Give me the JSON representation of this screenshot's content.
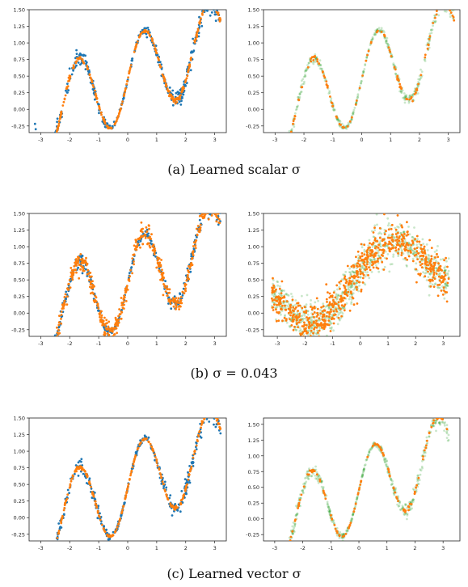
{
  "captions": [
    "(a) Learned scalar σ",
    "(b) σ = 0.043",
    "(c) Learned vector σ"
  ],
  "colors": {
    "blue": "#1f77b4",
    "orange": "#ff7f0e",
    "green": "#2ca02c"
  },
  "chart_data": [
    {
      "type": "scatter",
      "xlim": [
        -3.4,
        3.4
      ],
      "ylim": [
        -0.35,
        1.5
      ],
      "xticks": [
        "-3",
        "-2",
        "-1",
        "0",
        "1",
        "2",
        "3"
      ],
      "yticks": [
        "-0.25",
        "0.00",
        "0.25",
        "0.50",
        "0.75",
        "1.00",
        "1.25",
        "1.50"
      ],
      "ytick_values": [
        -0.25,
        0,
        0.25,
        0.5,
        0.75,
        1.0,
        1.25,
        1.5
      ],
      "series": [
        {
          "color": "blue",
          "noise": [
            0.06,
            0.01,
            0.08
          ],
          "count": 420
        },
        {
          "color": "orange",
          "noise": [
            0.02,
            0.0,
            0.02
          ],
          "count": 380
        }
      ],
      "function": "y = (sin(2.8x) + 0.3x + 0.4)/1.6 + 0.2"
    },
    {
      "type": "scatter",
      "xlim": [
        -3.4,
        3.4
      ],
      "ylim": [
        -0.35,
        1.5
      ],
      "xticks": [
        "-3",
        "-2",
        "-1",
        "0",
        "1",
        "2",
        "3"
      ],
      "yticks": [
        "-0.25",
        "0.00",
        "0.25",
        "0.50",
        "0.75",
        "1.00",
        "1.25",
        "1.50"
      ],
      "ytick_values": [
        -0.25,
        0,
        0.25,
        0.5,
        0.75,
        1.0,
        1.25,
        1.5
      ],
      "series": [
        {
          "color": "green",
          "noise": [
            0.04,
            0.01,
            0.06
          ],
          "count": 500,
          "alpha": 0.25
        },
        {
          "color": "orange",
          "noise": [
            0.02,
            0.0,
            0.02
          ],
          "count": 130
        }
      ]
    },
    {
      "type": "scatter",
      "xlim": [
        -3.4,
        3.4
      ],
      "ylim": [
        -0.35,
        1.5
      ],
      "xticks": [
        "-3",
        "-2",
        "-1",
        "0",
        "1",
        "2",
        "3"
      ],
      "yticks": [
        "-0.25",
        "0.00",
        "0.25",
        "0.50",
        "0.75",
        "1.00",
        "1.25",
        "1.50"
      ],
      "ytick_values": [
        -0.25,
        0,
        0.25,
        0.5,
        0.75,
        1.0,
        1.25,
        1.5
      ],
      "series": [
        {
          "color": "blue",
          "noise": [
            0.06,
            0.01,
            0.08
          ],
          "count": 420
        },
        {
          "color": "orange",
          "noise": [
            0.07,
            0.07,
            0.07
          ],
          "count": 600
        }
      ]
    },
    {
      "type": "scatter",
      "xlim": [
        -3.5,
        3.6
      ],
      "ylim": [
        -0.35,
        1.5
      ],
      "xticks": [
        "-3",
        "-2",
        "-1",
        "0",
        "1",
        "2",
        "3"
      ],
      "yticks": [
        "-0.25",
        "0.00",
        "0.25",
        "0.50",
        "0.75",
        "1.00",
        "1.25",
        "1.50"
      ],
      "ytick_values": [
        -0.25,
        0,
        0.25,
        0.5,
        0.75,
        1.0,
        1.25,
        1.5
      ],
      "series": [
        {
          "color": "green",
          "noise": [
            0.15,
            0.15,
            0.15
          ],
          "count": 900,
          "alpha": 0.25,
          "smooth": true
        },
        {
          "color": "orange",
          "noise": [
            0.15,
            0.15,
            0.15
          ],
          "count": 700,
          "smooth": true
        }
      ]
    },
    {
      "type": "scatter",
      "xlim": [
        -3.4,
        3.4
      ],
      "ylim": [
        -0.35,
        1.5
      ],
      "xticks": [
        "-3",
        "-2",
        "-1",
        "0",
        "1",
        "2",
        "3"
      ],
      "yticks": [
        "-0.25",
        "0.00",
        "0.25",
        "0.50",
        "0.75",
        "1.00",
        "1.25",
        "1.50"
      ],
      "ytick_values": [
        -0.25,
        0,
        0.25,
        0.5,
        0.75,
        1.0,
        1.25,
        1.5
      ],
      "series": [
        {
          "color": "blue",
          "noise": [
            0.06,
            0.01,
            0.08
          ],
          "count": 420
        },
        {
          "color": "orange",
          "noise": [
            0.015,
            0.0,
            0.015
          ],
          "count": 380
        }
      ]
    },
    {
      "type": "scatter",
      "xlim": [
        -3.4,
        3.6
      ],
      "ylim": [
        -0.35,
        1.6
      ],
      "xticks": [
        "-3",
        "-2",
        "-1",
        "0",
        "1",
        "2",
        "3"
      ],
      "yticks": [
        "-0.25",
        "0.00",
        "0.25",
        "0.50",
        "0.75",
        "1.00",
        "1.25",
        "1.50"
      ],
      "ytick_values": [
        -0.25,
        0,
        0.25,
        0.5,
        0.75,
        1.0,
        1.25,
        1.5
      ],
      "series": [
        {
          "color": "green",
          "noise": [
            0.05,
            0.01,
            0.07
          ],
          "count": 550,
          "alpha": 0.25
        },
        {
          "color": "orange",
          "noise": [
            0.015,
            0.0,
            0.015
          ],
          "count": 160
        }
      ]
    }
  ]
}
